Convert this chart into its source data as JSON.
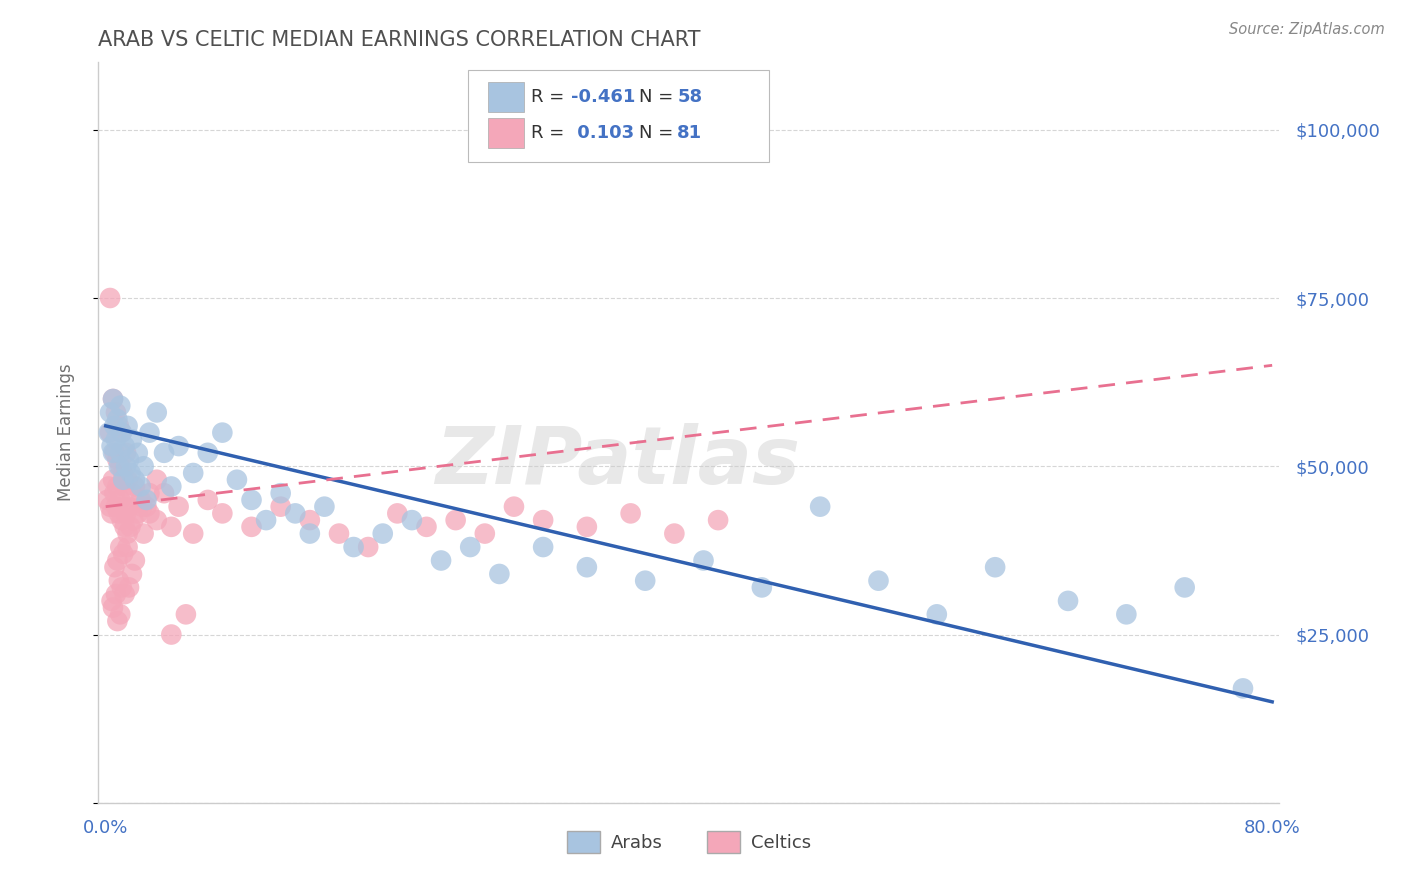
{
  "title": "ARAB VS CELTIC MEDIAN EARNINGS CORRELATION CHART",
  "source_text": "Source: ZipAtlas.com",
  "ylabel": "Median Earnings",
  "watermark": "ZIPatlas",
  "legend_r_arab": "-0.461",
  "legend_n_arab": "58",
  "legend_r_celtic": "0.103",
  "legend_n_celtic": "81",
  "arab_color": "#a8c4e0",
  "celtic_color": "#f4a7b9",
  "arab_line_color": "#3060b0",
  "celtic_line_color": "#e87090",
  "background_color": "#ffffff",
  "grid_color": "#cccccc",
  "title_color": "#505050",
  "axis_label_color": "#707070",
  "tick_color": "#4472c4",
  "xlim": [
    -0.005,
    0.805
  ],
  "ylim": [
    0,
    110000
  ],
  "arab_scatter": {
    "x": [
      0.002,
      0.003,
      0.004,
      0.005,
      0.005,
      0.006,
      0.007,
      0.008,
      0.009,
      0.01,
      0.01,
      0.011,
      0.012,
      0.013,
      0.014,
      0.015,
      0.016,
      0.017,
      0.018,
      0.02,
      0.022,
      0.024,
      0.026,
      0.028,
      0.03,
      0.035,
      0.04,
      0.045,
      0.05,
      0.06,
      0.07,
      0.08,
      0.09,
      0.1,
      0.11,
      0.12,
      0.13,
      0.14,
      0.15,
      0.17,
      0.19,
      0.21,
      0.23,
      0.25,
      0.27,
      0.3,
      0.33,
      0.37,
      0.41,
      0.45,
      0.49,
      0.53,
      0.57,
      0.61,
      0.66,
      0.7,
      0.74,
      0.78
    ],
    "y": [
      55000,
      58000,
      53000,
      52000,
      60000,
      56000,
      54000,
      57000,
      50000,
      59000,
      52000,
      55000,
      48000,
      53000,
      50000,
      56000,
      51000,
      49000,
      54000,
      48000,
      52000,
      47000,
      50000,
      45000,
      55000,
      58000,
      52000,
      47000,
      53000,
      49000,
      52000,
      55000,
      48000,
      45000,
      42000,
      46000,
      43000,
      40000,
      44000,
      38000,
      40000,
      42000,
      36000,
      38000,
      34000,
      38000,
      35000,
      33000,
      36000,
      32000,
      44000,
      33000,
      28000,
      35000,
      30000,
      28000,
      32000,
      17000
    ]
  },
  "celtic_scatter": {
    "x": [
      0.001,
      0.002,
      0.003,
      0.003,
      0.004,
      0.005,
      0.005,
      0.006,
      0.006,
      0.007,
      0.007,
      0.008,
      0.008,
      0.009,
      0.009,
      0.01,
      0.01,
      0.011,
      0.011,
      0.012,
      0.012,
      0.013,
      0.013,
      0.014,
      0.014,
      0.015,
      0.015,
      0.016,
      0.017,
      0.018,
      0.019,
      0.02,
      0.022,
      0.024,
      0.026,
      0.028,
      0.03,
      0.035,
      0.04,
      0.045,
      0.05,
      0.06,
      0.07,
      0.08,
      0.1,
      0.12,
      0.14,
      0.16,
      0.18,
      0.2,
      0.22,
      0.24,
      0.26,
      0.28,
      0.3,
      0.33,
      0.36,
      0.39,
      0.42,
      0.01,
      0.008,
      0.012,
      0.006,
      0.015,
      0.009,
      0.02,
      0.018,
      0.011,
      0.007,
      0.004,
      0.005,
      0.013,
      0.016,
      0.01,
      0.008,
      0.03,
      0.025,
      0.035,
      0.045,
      0.055,
      0.003
    ],
    "y": [
      45000,
      47000,
      44000,
      55000,
      43000,
      48000,
      60000,
      46000,
      52000,
      44000,
      58000,
      47000,
      51000,
      43000,
      56000,
      45000,
      50000,
      42000,
      55000,
      44000,
      49000,
      41000,
      47000,
      43000,
      52000,
      40000,
      48000,
      44000,
      41000,
      46000,
      42000,
      47000,
      43000,
      45000,
      40000,
      44000,
      43000,
      42000,
      46000,
      41000,
      44000,
      40000,
      45000,
      43000,
      41000,
      44000,
      42000,
      40000,
      38000,
      43000,
      41000,
      42000,
      40000,
      44000,
      42000,
      41000,
      43000,
      40000,
      42000,
      38000,
      36000,
      37000,
      35000,
      38000,
      33000,
      36000,
      34000,
      32000,
      31000,
      30000,
      29000,
      31000,
      32000,
      28000,
      27000,
      46000,
      44000,
      48000,
      25000,
      28000,
      75000
    ]
  },
  "arab_line": {
    "x0": 0.0,
    "y0": 56000,
    "x1": 0.8,
    "y1": 15000
  },
  "celtic_line": {
    "x0": 0.0,
    "y0": 44000,
    "x1": 0.8,
    "y1": 65000
  }
}
